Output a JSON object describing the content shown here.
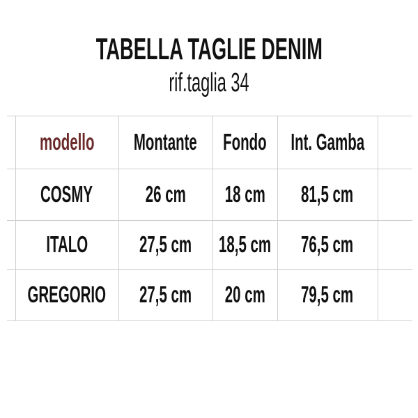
{
  "title": "TABELLA TAGLIE DENIM",
  "subtitle": "rif.taglia 34",
  "accent_color": "#6b2a2a",
  "table": {
    "headers": [
      "modello",
      "Montante",
      "Fondo",
      "Int. Gamba"
    ],
    "rows": [
      [
        "COSMY",
        "26 cm",
        "18 cm",
        "81,5 cm"
      ],
      [
        "ITALO",
        "27,5 cm",
        "18,5 cm",
        "76,5 cm"
      ],
      [
        "GREGORIO",
        "27,5 cm",
        "20 cm",
        "79,5 cm"
      ]
    ]
  }
}
